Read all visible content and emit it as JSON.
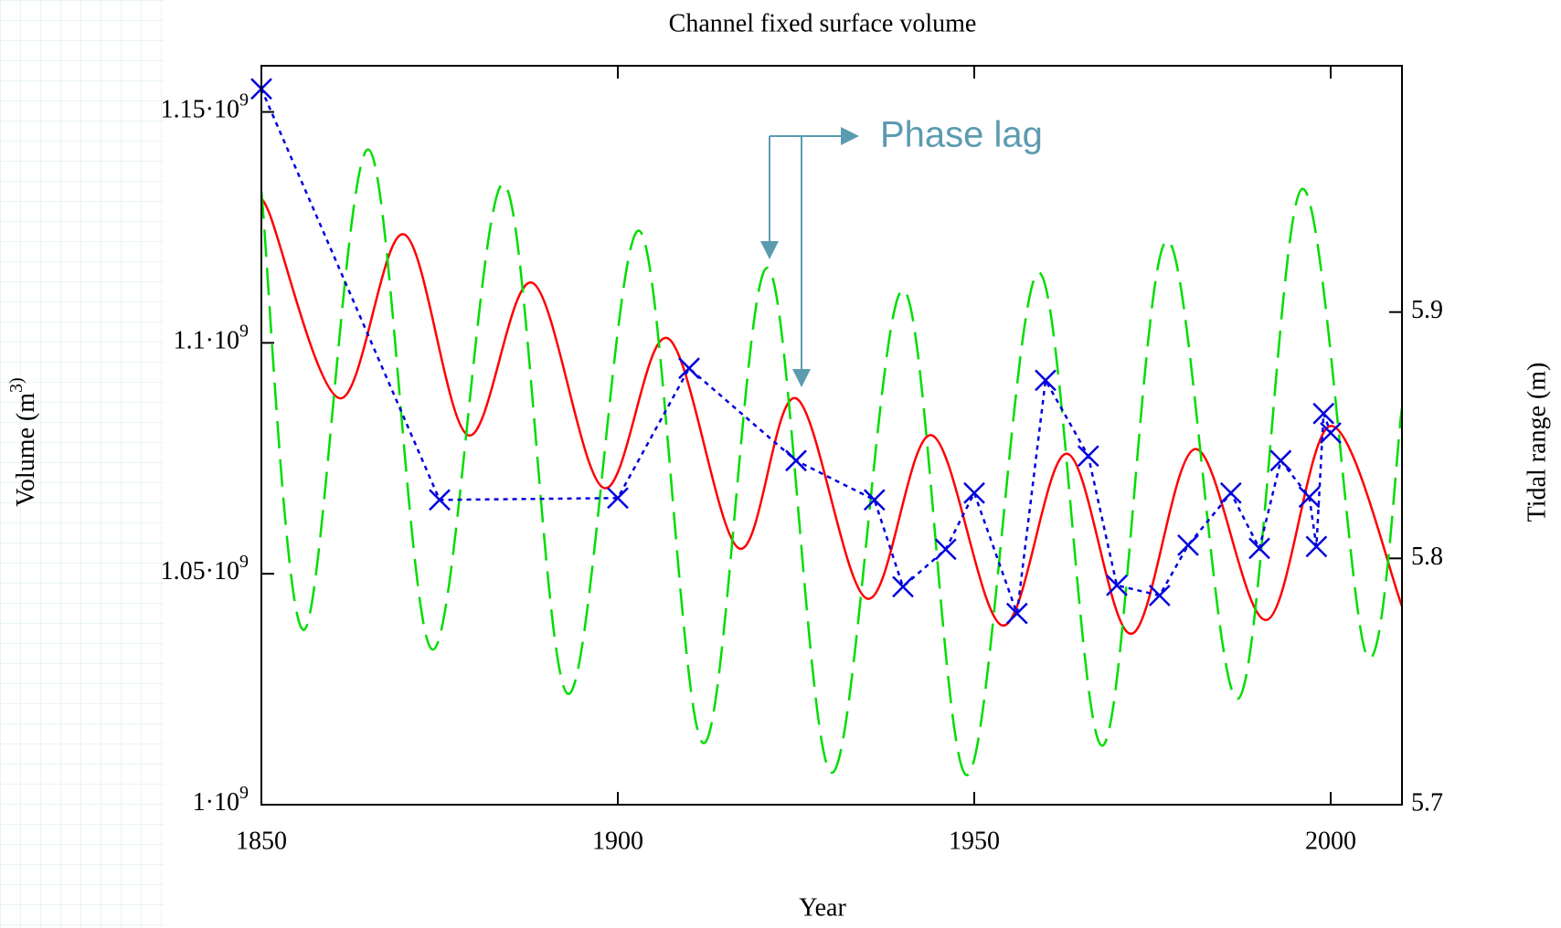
{
  "chart_data": {
    "type": "line",
    "title": "Channel fixed surface volume",
    "x_label": "Year",
    "y_label": "Volume (m^3)",
    "y2_label": "Tidal range (m)",
    "annotation": "Phase lag",
    "xlim": [
      1850,
      2010
    ],
    "xticks": [
      1850,
      1900,
      1950,
      2000
    ],
    "ylim": [
      1000000000,
      1160000000
    ],
    "yticks": [
      {
        "value": 1000000000,
        "label": "1·10^9"
      },
      {
        "value": 1050000000,
        "label": "1.05·10^9"
      },
      {
        "value": 1100000000,
        "label": "1.1·10^9"
      },
      {
        "value": 1150000000,
        "label": "1.15·10^9"
      }
    ],
    "y2lim": [
      5.7,
      6.0
    ],
    "y2ticks": [
      5.7,
      5.8,
      5.9
    ],
    "series": [
      {
        "style": "solid",
        "color": "#ff0000",
        "x": [
          1850,
          1851,
          1861,
          1870,
          1879,
          1888,
          1898,
          1907,
          1917,
          1925,
          1935,
          1944,
          1954,
          1963,
          1972,
          1981,
          1991,
          2000,
          2010
        ],
        "values": [
          1127000000,
          1128500000,
          1088000000,
          1123500000,
          1080000000,
          1113000000,
          1068600000,
          1101000000,
          1055500000,
          1088000000,
          1044600000,
          1080000000,
          1038800000,
          1076000000,
          1037000000,
          1077000000,
          1040000000,
          1082000000,
          1043000000
        ]
      },
      {
        "style": "dashed",
        "color": "#00dd00",
        "axis": "y2",
        "x": [
          1850,
          1856,
          1865,
          1874,
          1884,
          1893,
          1903,
          1912,
          1921,
          1930,
          1940,
          1949,
          1959,
          1968,
          1977,
          1987,
          1996,
          2005,
          2010
        ],
        "values": [
          5.949,
          5.771,
          5.966,
          5.763,
          5.952,
          5.745,
          5.933,
          5.725,
          5.918,
          5.713,
          5.909,
          5.712,
          5.916,
          5.724,
          5.929,
          5.743,
          5.95,
          5.761,
          5.861
        ]
      },
      {
        "style": "markers",
        "color": "#0000dd",
        "x": [
          1850,
          1875,
          1900,
          1910,
          1925,
          1936,
          1940,
          1946,
          1950,
          1956,
          1960,
          1966,
          1970,
          1976,
          1980,
          1986,
          1990,
          1993,
          1997,
          1998,
          1999,
          2000
        ],
        "values": [
          1155000000,
          1066000000,
          1066400000,
          1094500000,
          1074500000,
          1066000000,
          1047200000,
          1055300000,
          1067500000,
          1041400000,
          1091900000,
          1075500000,
          1047500000,
          1045300000,
          1056200000,
          1067500000,
          1055500000,
          1074500000,
          1066600000,
          1055900000,
          1084700000,
          1080500000
        ]
      }
    ]
  }
}
